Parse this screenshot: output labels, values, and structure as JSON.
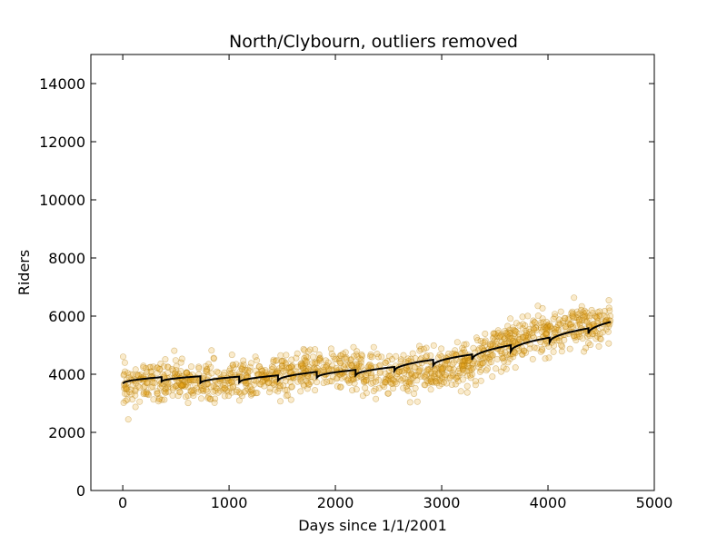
{
  "chart_data": {
    "type": "scatter",
    "title": "North/Clybourn, outliers removed",
    "xlabel": "Days since 1/1/2001",
    "ylabel": "Riders",
    "xlim": [
      -300,
      5000
    ],
    "ylim": [
      0,
      15000
    ],
    "x_ticks": [
      0,
      1000,
      2000,
      3000,
      4000,
      5000
    ],
    "y_ticks": [
      0,
      2000,
      4000,
      6000,
      8000,
      10000,
      12000,
      14000
    ],
    "x_tick_labels": [
      "0",
      "1000",
      "2000",
      "3000",
      "4000",
      "5000"
    ],
    "y_tick_labels": [
      "0",
      "2000",
      "4000",
      "6000",
      "8000",
      "10000",
      "12000",
      "14000"
    ],
    "grid": false,
    "colors": {
      "points_fill": "#e8a317",
      "points_edge": "#b07a0a",
      "fit_line": "#000000"
    },
    "series": [
      {
        "kind": "scatter",
        "x_range": [
          0,
          4590
        ],
        "approx_count": 1400,
        "trend_points": [
          [
            0,
            3650
          ],
          [
            365,
            3750
          ],
          [
            730,
            3700
          ],
          [
            1095,
            3750
          ],
          [
            1460,
            3900
          ],
          [
            1825,
            4100
          ],
          [
            2190,
            4150
          ],
          [
            2555,
            3950
          ],
          [
            2920,
            4150
          ],
          [
            3285,
            4400
          ],
          [
            3650,
            5100
          ],
          [
            4015,
            5500
          ],
          [
            4380,
            5700
          ],
          [
            4590,
            5800
          ]
        ],
        "spread": 350
      },
      {
        "kind": "line",
        "segments": [
          {
            "x": [
              0,
              365
            ],
            "y": [
              3680,
              3900
            ]
          },
          {
            "x": [
              365,
              730
            ],
            "y": [
              3750,
              3930
            ]
          },
          {
            "x": [
              730,
              1095
            ],
            "y": [
              3700,
              3920
            ]
          },
          {
            "x": [
              1095,
              1460
            ],
            "y": [
              3720,
              3960
            ]
          },
          {
            "x": [
              1460,
              1825
            ],
            "y": [
              3780,
              4080
            ]
          },
          {
            "x": [
              1825,
              2190
            ],
            "y": [
              3880,
              4150
            ]
          },
          {
            "x": [
              2190,
              2555
            ],
            "y": [
              3960,
              4250
            ]
          },
          {
            "x": [
              2555,
              2920
            ],
            "y": [
              4120,
              4500
            ]
          },
          {
            "x": [
              2920,
              3285
            ],
            "y": [
              4300,
              4680
            ]
          },
          {
            "x": [
              3285,
              3650
            ],
            "y": [
              4500,
              5000
            ]
          },
          {
            "x": [
              3650,
              4015
            ],
            "y": [
              4780,
              5260
            ]
          },
          {
            "x": [
              4015,
              4380
            ],
            "y": [
              5100,
              5580
            ]
          },
          {
            "x": [
              4380,
              4590
            ],
            "y": [
              5400,
              5800
            ]
          }
        ]
      }
    ]
  }
}
